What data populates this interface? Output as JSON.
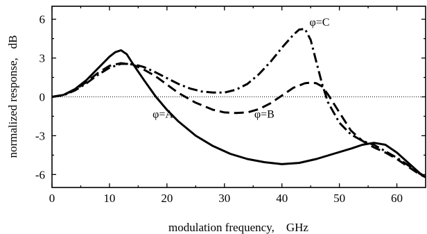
{
  "chart_data": {
    "type": "line",
    "xlabel": "modulation frequency,    GHz",
    "ylabel": "normalized response,   dB",
    "xlim": [
      0,
      65
    ],
    "ylim": [
      -7,
      7
    ],
    "xticks": [
      0,
      10,
      20,
      30,
      40,
      50,
      60
    ],
    "yticks": [
      6,
      3,
      0,
      -3,
      -6
    ],
    "ytick_labels": [
      "6",
      "3",
      "0",
      "-3",
      "-6"
    ],
    "grid": false,
    "reference_line": {
      "y": 0,
      "style": "dotted"
    },
    "series": [
      {
        "dash": "solid",
        "x": [
          0,
          2,
          4,
          6,
          8,
          10,
          11,
          12,
          13,
          14,
          16,
          18,
          20,
          22,
          25,
          28,
          31,
          34,
          37,
          40,
          43,
          46,
          49,
          52,
          54,
          56,
          58,
          60,
          62,
          64,
          65
        ],
        "y": [
          0,
          0.15,
          0.6,
          1.3,
          2.2,
          3.1,
          3.45,
          3.6,
          3.3,
          2.6,
          1.3,
          0.05,
          -1.0,
          -1.9,
          -3.0,
          -3.8,
          -4.4,
          -4.8,
          -5.05,
          -5.2,
          -5.1,
          -4.8,
          -4.4,
          -4.0,
          -3.7,
          -3.55,
          -3.7,
          -4.3,
          -5.1,
          -5.9,
          -6.2
        ]
      },
      {
        "dash": "dashed",
        "x": [
          0,
          2,
          4,
          6,
          8,
          10,
          12,
          14,
          16,
          18,
          20,
          22,
          25,
          28,
          30,
          32,
          34,
          36,
          38,
          40,
          42,
          44,
          45,
          46,
          47,
          48,
          50,
          52,
          54,
          56,
          58,
          60,
          62,
          64,
          65
        ],
        "y": [
          0,
          0.15,
          0.55,
          1.15,
          1.85,
          2.4,
          2.6,
          2.5,
          2.1,
          1.6,
          0.95,
          0.3,
          -0.45,
          -1.0,
          -1.2,
          -1.25,
          -1.2,
          -0.95,
          -0.5,
          0.1,
          0.7,
          1.05,
          1.1,
          1.05,
          0.8,
          0.2,
          -1.2,
          -2.6,
          -3.4,
          -3.9,
          -4.3,
          -4.8,
          -5.4,
          -6.0,
          -6.2
        ]
      },
      {
        "dash": "dashdot",
        "x": [
          0,
          2,
          4,
          6,
          8,
          10,
          12,
          14,
          16,
          18,
          20,
          22,
          24,
          26,
          28,
          30,
          32,
          34,
          36,
          38,
          40,
          42,
          43,
          44,
          45,
          46,
          47,
          48,
          50,
          52,
          54,
          56,
          58,
          60,
          62,
          64,
          65
        ],
        "y": [
          0,
          0.12,
          0.5,
          1.05,
          1.7,
          2.25,
          2.55,
          2.55,
          2.3,
          1.9,
          1.45,
          1.0,
          0.65,
          0.42,
          0.33,
          0.33,
          0.55,
          1.0,
          1.75,
          2.7,
          3.8,
          4.8,
          5.2,
          5.25,
          4.4,
          2.7,
          1.0,
          -0.4,
          -2.0,
          -2.9,
          -3.4,
          -3.7,
          -4.2,
          -4.7,
          -5.3,
          -5.95,
          -6.2
        ]
      }
    ],
    "annotations": [
      {
        "text": "φ=A",
        "x": 17.5,
        "y": -1.6
      },
      {
        "text": "φ=B",
        "x": 35.2,
        "y": -1.6
      },
      {
        "text": "φ=C",
        "x": 44.8,
        "y": 5.5
      }
    ]
  }
}
